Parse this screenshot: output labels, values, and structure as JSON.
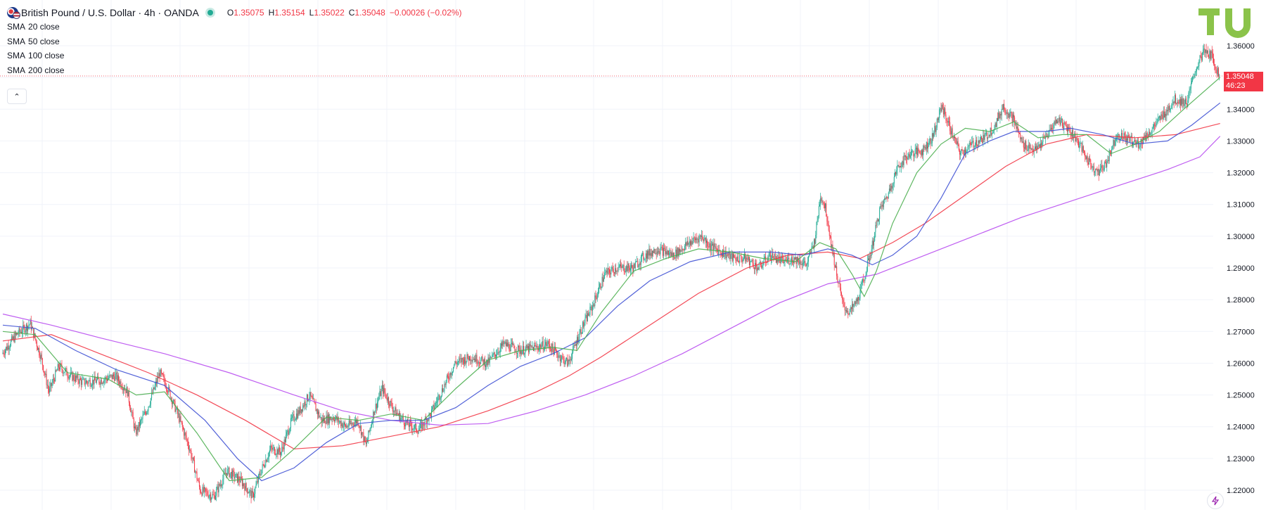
{
  "header": {
    "symbol": "British Pound / U.S. Dollar · 4h · OANDA",
    "ohlc": {
      "o_label": "O",
      "o": "1.35075",
      "h_label": "H",
      "h": "1.35154",
      "l_label": "L",
      "l": "1.35022",
      "c_label": "C",
      "c": "1.35048",
      "change": "−0.00026 (−0.02%)"
    },
    "market_status_color": "#22ab94"
  },
  "indicators": [
    {
      "name": "SMA",
      "param": "20 close",
      "color": "#4caf50"
    },
    {
      "name": "SMA",
      "param": "50 close",
      "color": "#3f51d4"
    },
    {
      "name": "SMA",
      "param": "100 close",
      "color": "#f23645"
    },
    {
      "name": "SMA",
      "param": "200 close",
      "color": "#b84cf0"
    }
  ],
  "price_tag": {
    "price": "1.35048",
    "countdown": "46:23",
    "color": "#f23645"
  },
  "colors": {
    "up": "#22ab94",
    "down": "#f23645",
    "grid": "#f0f3fa",
    "text": "#131722"
  },
  "icons": {
    "collapse": "chevron-up-icon",
    "logo": "tradingview-logo-icon",
    "bolt": "lightning-icon"
  },
  "chart_data": {
    "type": "candlestick",
    "title": "British Pound / U.S. Dollar · 4h · OANDA",
    "y_axis": {
      "ticks": [
        "1.36000",
        "1.35000",
        "1.34000",
        "1.33000",
        "1.32000",
        "1.31000",
        "1.30000",
        "1.29000",
        "1.28000",
        "1.27000",
        "1.26000",
        "1.25000",
        "1.24000",
        "1.23000",
        "1.22000"
      ],
      "ylim": [
        1.2125,
        1.3705
      ]
    },
    "grid": true,
    "last_price": 1.35048,
    "price_path": [
      [
        0,
        1.263
      ],
      [
        18,
        1.269
      ],
      [
        35,
        1.2725
      ],
      [
        48,
        1.262
      ],
      [
        58,
        1.251
      ],
      [
        70,
        1.259
      ],
      [
        85,
        1.256
      ],
      [
        100,
        1.254
      ],
      [
        120,
        1.2545
      ],
      [
        140,
        1.256
      ],
      [
        155,
        1.251
      ],
      [
        165,
        1.238
      ],
      [
        180,
        1.246
      ],
      [
        195,
        1.257
      ],
      [
        205,
        1.252
      ],
      [
        220,
        1.242
      ],
      [
        232,
        1.233
      ],
      [
        245,
        1.22
      ],
      [
        262,
        1.218
      ],
      [
        278,
        1.226
      ],
      [
        295,
        1.223
      ],
      [
        310,
        1.218
      ],
      [
        320,
        1.226
      ],
      [
        332,
        1.233
      ],
      [
        345,
        1.232
      ],
      [
        358,
        1.242
      ],
      [
        368,
        1.245
      ],
      [
        380,
        1.25
      ],
      [
        395,
        1.242
      ],
      [
        410,
        1.243
      ],
      [
        425,
        1.24
      ],
      [
        440,
        1.242
      ],
      [
        450,
        1.234
      ],
      [
        460,
        1.245
      ],
      [
        470,
        1.252
      ],
      [
        485,
        1.245
      ],
      [
        500,
        1.241
      ],
      [
        515,
        1.239
      ],
      [
        530,
        1.244
      ],
      [
        545,
        1.252
      ],
      [
        560,
        1.26
      ],
      [
        580,
        1.262
      ],
      [
        600,
        1.26
      ],
      [
        620,
        1.266
      ],
      [
        640,
        1.264
      ],
      [
        660,
        1.265
      ],
      [
        675,
        1.266
      ],
      [
        690,
        1.262
      ],
      [
        700,
        1.26
      ],
      [
        715,
        1.27
      ],
      [
        730,
        1.278
      ],
      [
        745,
        1.288
      ],
      [
        760,
        1.29
      ],
      [
        780,
        1.29
      ],
      [
        795,
        1.294
      ],
      [
        810,
        1.296
      ],
      [
        830,
        1.294
      ],
      [
        850,
        1.298
      ],
      [
        865,
        1.3
      ],
      [
        875,
        1.297
      ],
      [
        890,
        1.295
      ],
      [
        905,
        1.293
      ],
      [
        920,
        1.293
      ],
      [
        935,
        1.29
      ],
      [
        950,
        1.294
      ],
      [
        965,
        1.292
      ],
      [
        980,
        1.293
      ],
      [
        995,
        1.291
      ],
      [
        1005,
        1.299
      ],
      [
        1012,
        1.313
      ],
      [
        1018,
        1.309
      ],
      [
        1025,
        1.298
      ],
      [
        1032,
        1.288
      ],
      [
        1040,
        1.278
      ],
      [
        1048,
        1.276
      ],
      [
        1058,
        1.28
      ],
      [
        1065,
        1.286
      ],
      [
        1075,
        1.296
      ],
      [
        1085,
        1.308
      ],
      [
        1095,
        1.313
      ],
      [
        1108,
        1.322
      ],
      [
        1122,
        1.326
      ],
      [
        1138,
        1.327
      ],
      [
        1150,
        1.331
      ],
      [
        1162,
        1.341
      ],
      [
        1175,
        1.332
      ],
      [
        1185,
        1.326
      ],
      [
        1200,
        1.329
      ],
      [
        1215,
        1.331
      ],
      [
        1228,
        1.335
      ],
      [
        1238,
        1.341
      ],
      [
        1250,
        1.337
      ],
      [
        1262,
        1.329
      ],
      [
        1278,
        1.327
      ],
      [
        1290,
        1.331
      ],
      [
        1305,
        1.337
      ],
      [
        1318,
        1.334
      ],
      [
        1330,
        1.33
      ],
      [
        1342,
        1.324
      ],
      [
        1355,
        1.32
      ],
      [
        1365,
        1.323
      ],
      [
        1378,
        1.332
      ],
      [
        1390,
        1.331
      ],
      [
        1405,
        1.329
      ],
      [
        1420,
        1.333
      ],
      [
        1435,
        1.338
      ],
      [
        1450,
        1.343
      ],
      [
        1465,
        1.342
      ],
      [
        1475,
        1.352
      ],
      [
        1485,
        1.358
      ],
      [
        1495,
        1.357
      ],
      [
        1505,
        1.3505
      ]
    ],
    "sma20_path": [
      [
        0,
        1.27
      ],
      [
        40,
        1.269
      ],
      [
        80,
        1.257
      ],
      [
        130,
        1.255
      ],
      [
        165,
        1.25
      ],
      [
        200,
        1.251
      ],
      [
        240,
        1.238
      ],
      [
        280,
        1.223
      ],
      [
        320,
        1.224
      ],
      [
        360,
        1.233
      ],
      [
        400,
        1.243
      ],
      [
        440,
        1.242
      ],
      [
        480,
        1.244
      ],
      [
        520,
        1.242
      ],
      [
        560,
        1.252
      ],
      [
        600,
        1.261
      ],
      [
        640,
        1.264
      ],
      [
        680,
        1.265
      ],
      [
        710,
        1.264
      ],
      [
        740,
        1.276
      ],
      [
        780,
        1.289
      ],
      [
        820,
        1.293
      ],
      [
        860,
        1.296
      ],
      [
        900,
        1.295
      ],
      [
        940,
        1.293
      ],
      [
        980,
        1.292
      ],
      [
        1010,
        1.298
      ],
      [
        1030,
        1.296
      ],
      [
        1050,
        1.288
      ],
      [
        1065,
        1.281
      ],
      [
        1080,
        1.289
      ],
      [
        1100,
        1.304
      ],
      [
        1130,
        1.32
      ],
      [
        1160,
        1.329
      ],
      [
        1190,
        1.334
      ],
      [
        1220,
        1.333
      ],
      [
        1250,
        1.336
      ],
      [
        1280,
        1.331
      ],
      [
        1310,
        1.332
      ],
      [
        1340,
        1.332
      ],
      [
        1370,
        1.326
      ],
      [
        1400,
        1.329
      ],
      [
        1430,
        1.333
      ],
      [
        1460,
        1.34
      ],
      [
        1505,
        1.35
      ]
    ],
    "sma50_path": [
      [
        0,
        1.272
      ],
      [
        40,
        1.271
      ],
      [
        90,
        1.264
      ],
      [
        140,
        1.258
      ],
      [
        200,
        1.253
      ],
      [
        250,
        1.242
      ],
      [
        290,
        1.23
      ],
      [
        320,
        1.223
      ],
      [
        360,
        1.227
      ],
      [
        400,
        1.235
      ],
      [
        440,
        1.241
      ],
      [
        480,
        1.242
      ],
      [
        520,
        1.242
      ],
      [
        560,
        1.246
      ],
      [
        600,
        1.253
      ],
      [
        640,
        1.259
      ],
      [
        680,
        1.263
      ],
      [
        720,
        1.268
      ],
      [
        760,
        1.278
      ],
      [
        800,
        1.286
      ],
      [
        850,
        1.292
      ],
      [
        900,
        1.295
      ],
      [
        950,
        1.295
      ],
      [
        990,
        1.294
      ],
      [
        1020,
        1.296
      ],
      [
        1050,
        1.294
      ],
      [
        1075,
        1.291
      ],
      [
        1100,
        1.294
      ],
      [
        1130,
        1.3
      ],
      [
        1160,
        1.312
      ],
      [
        1190,
        1.326
      ],
      [
        1220,
        1.33
      ],
      [
        1250,
        1.333
      ],
      [
        1290,
        1.333
      ],
      [
        1320,
        1.334
      ],
      [
        1360,
        1.332
      ],
      [
        1400,
        1.329
      ],
      [
        1440,
        1.33
      ],
      [
        1470,
        1.335
      ],
      [
        1505,
        1.342
      ]
    ],
    "sma100_path": [
      [
        0,
        1.267
      ],
      [
        60,
        1.269
      ],
      [
        120,
        1.263
      ],
      [
        180,
        1.257
      ],
      [
        240,
        1.25
      ],
      [
        300,
        1.242
      ],
      [
        360,
        1.233
      ],
      [
        420,
        1.234
      ],
      [
        480,
        1.237
      ],
      [
        540,
        1.24
      ],
      [
        600,
        1.245
      ],
      [
        660,
        1.251
      ],
      [
        700,
        1.256
      ],
      [
        740,
        1.262
      ],
      [
        800,
        1.272
      ],
      [
        860,
        1.282
      ],
      [
        920,
        1.29
      ],
      [
        970,
        1.294
      ],
      [
        1020,
        1.295
      ],
      [
        1060,
        1.293
      ],
      [
        1100,
        1.298
      ],
      [
        1140,
        1.304
      ],
      [
        1190,
        1.313
      ],
      [
        1240,
        1.322
      ],
      [
        1290,
        1.329
      ],
      [
        1340,
        1.332
      ],
      [
        1400,
        1.331
      ],
      [
        1450,
        1.332
      ],
      [
        1505,
        1.3355
      ]
    ],
    "sma200_path": [
      [
        0,
        1.2755
      ],
      [
        60,
        1.272
      ],
      [
        120,
        1.268
      ],
      [
        200,
        1.263
      ],
      [
        280,
        1.257
      ],
      [
        360,
        1.25
      ],
      [
        420,
        1.245
      ],
      [
        480,
        1.242
      ],
      [
        540,
        1.2405
      ],
      [
        600,
        1.241
      ],
      [
        660,
        1.245
      ],
      [
        720,
        1.25
      ],
      [
        780,
        1.256
      ],
      [
        840,
        1.263
      ],
      [
        900,
        1.271
      ],
      [
        960,
        1.279
      ],
      [
        1020,
        1.285
      ],
      [
        1080,
        1.288
      ],
      [
        1140,
        1.294
      ],
      [
        1200,
        1.3
      ],
      [
        1260,
        1.306
      ],
      [
        1320,
        1.311
      ],
      [
        1380,
        1.316
      ],
      [
        1440,
        1.321
      ],
      [
        1480,
        1.325
      ],
      [
        1505,
        1.3315
      ]
    ]
  }
}
